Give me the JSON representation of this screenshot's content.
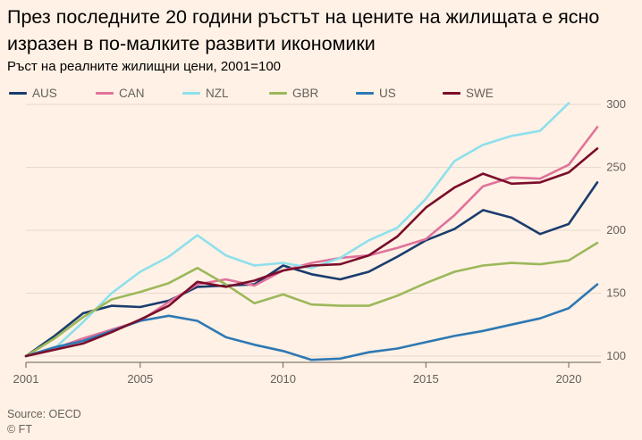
{
  "header": {
    "title": "През последните 20 години ръстът на цените на жилищата е ясно изразен в по-малките развити икономики",
    "subtitle": "Ръст на реалните жилищни цени, 2001=100"
  },
  "footer": {
    "source": "Source: OECD",
    "credit": "© FT"
  },
  "chart_data": {
    "type": "line",
    "title": "През последните 20 години ръстът на цените на жилищата е ясно изразен в по-малките развити икономики",
    "subtitle": "Ръст на реалните жилищни цени, 2001=100",
    "xlabel": "",
    "ylabel": "",
    "xlim": [
      2001,
      2021
    ],
    "ylim": [
      95,
      305
    ],
    "x_ticks": [
      2001,
      2005,
      2010,
      2015,
      2020
    ],
    "y_ticks": [
      100,
      150,
      200,
      250,
      300
    ],
    "y_axis_side": "right",
    "grid": true,
    "legend_position": "top-left",
    "x": [
      2001,
      2002,
      2003,
      2004,
      2005,
      2006,
      2007,
      2008,
      2009,
      2010,
      2011,
      2012,
      2013,
      2014,
      2015,
      2016,
      2017,
      2018,
      2019,
      2020,
      2021
    ],
    "series": [
      {
        "name": "AUS",
        "color": "#1a3c6e",
        "values": [
          100,
          116,
          134,
          140,
          139,
          144,
          155,
          156,
          157,
          172,
          165,
          161,
          167,
          179,
          192,
          201,
          216,
          210,
          197,
          205,
          238
        ]
      },
      {
        "name": "CAN",
        "color": "#e0739b",
        "values": [
          100,
          106,
          114,
          121,
          128,
          143,
          157,
          161,
          156,
          168,
          174,
          178,
          180,
          186,
          193,
          212,
          235,
          242,
          241,
          252,
          282
        ]
      },
      {
        "name": "NZL",
        "color": "#8ee0ec",
        "values": [
          100,
          106,
          127,
          150,
          167,
          179,
          196,
          180,
          172,
          174,
          170,
          178,
          192,
          202,
          225,
          255,
          268,
          275,
          279,
          301,
          null
        ]
      },
      {
        "name": "GBR",
        "color": "#9cb85a",
        "values": [
          100,
          114,
          131,
          145,
          151,
          158,
          170,
          157,
          142,
          149,
          141,
          140,
          140,
          148,
          158,
          167,
          172,
          174,
          173,
          176,
          190
        ]
      },
      {
        "name": "US",
        "color": "#2e78b4",
        "values": [
          100,
          107,
          112,
          120,
          128,
          132,
          128,
          115,
          109,
          104,
          97,
          98,
          103,
          106,
          111,
          116,
          120,
          125,
          130,
          138,
          157
        ]
      },
      {
        "name": "SWE",
        "color": "#7a0d2b",
        "values": [
          100,
          105,
          110,
          119,
          129,
          140,
          159,
          155,
          160,
          168,
          172,
          173,
          180,
          195,
          218,
          234,
          245,
          237,
          238,
          246,
          265
        ]
      }
    ]
  }
}
